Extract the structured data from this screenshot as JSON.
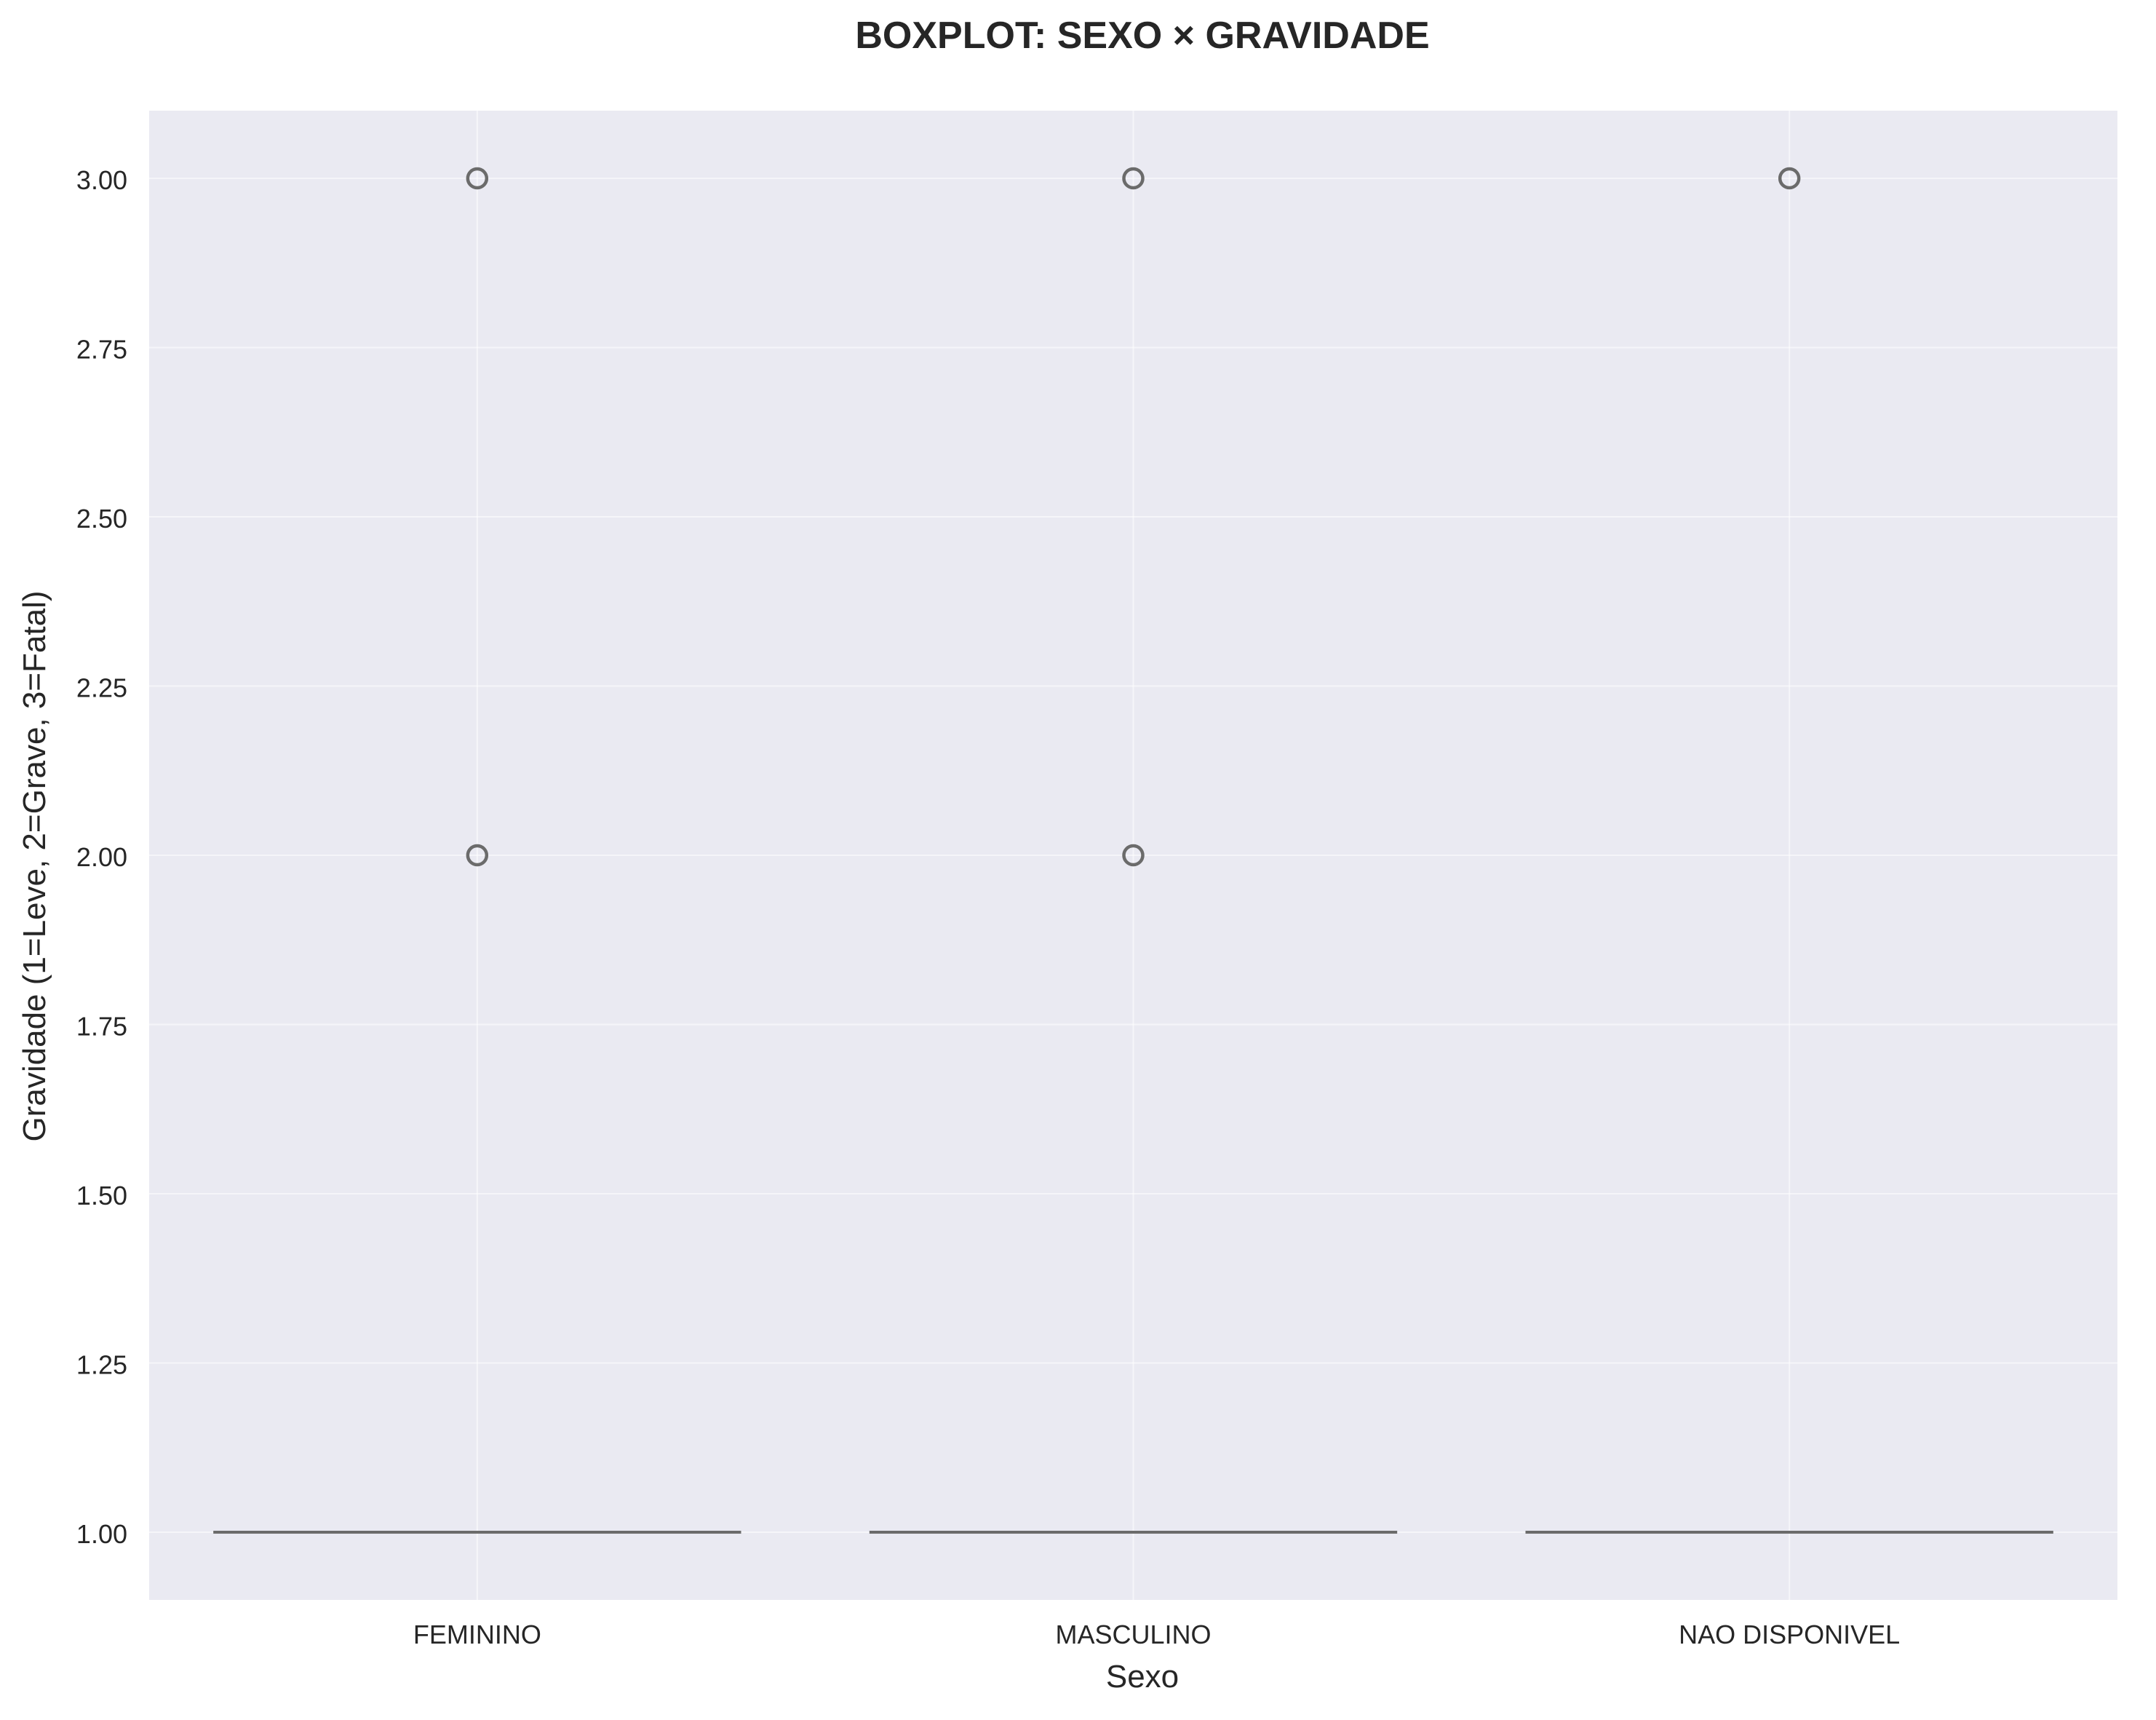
{
  "chart_data": {
    "type": "box",
    "title": "BOXPLOT: SEXO × GRAVIDADE",
    "xlabel": "Sexo",
    "ylabel": "Gravidade (1=Leve, 2=Grave, 3=Fatal)",
    "ylim": [
      0.9,
      3.1
    ],
    "yticks": [
      1.0,
      1.25,
      1.5,
      1.75,
      2.0,
      2.25,
      2.5,
      2.75,
      3.0
    ],
    "ytick_labels": [
      "1.00",
      "1.25",
      "1.50",
      "1.75",
      "2.00",
      "2.25",
      "2.50",
      "2.75",
      "3.00"
    ],
    "grid": true,
    "categories": [
      "FEMININO",
      "MASCULINO",
      "NAO DISPONIVEL"
    ],
    "boxes": [
      {
        "category": "FEMININO",
        "min": 1.0,
        "q1": 1.0,
        "median": 1.0,
        "q3": 1.0,
        "max": 1.0,
        "outliers": [
          2.0,
          3.0
        ]
      },
      {
        "category": "MASCULINO",
        "min": 1.0,
        "q1": 1.0,
        "median": 1.0,
        "q3": 1.0,
        "max": 1.0,
        "outliers": [
          2.0,
          3.0
        ]
      },
      {
        "category": "NAO DISPONIVEL",
        "min": 1.0,
        "q1": 1.0,
        "median": 1.0,
        "q3": 1.0,
        "max": 1.0,
        "outliers": [
          3.0
        ]
      }
    ],
    "colors": {
      "background": "#eaeaf2",
      "grid": "#ffffff",
      "box_line": "#6b6b6b",
      "outlier": "#6b6b6b"
    }
  }
}
